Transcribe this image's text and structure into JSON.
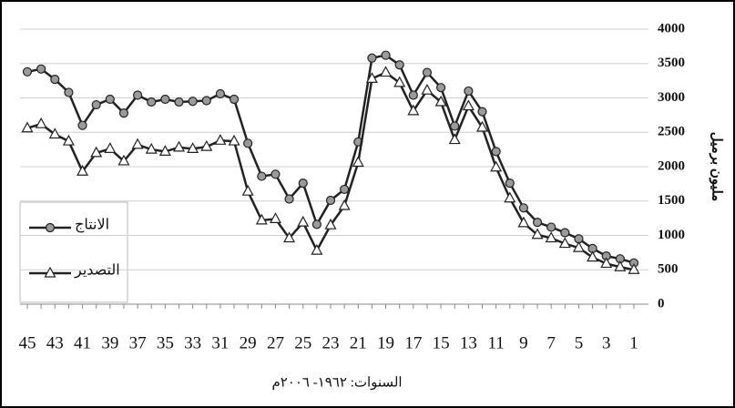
{
  "chart_data": {
    "type": "line",
    "y_label": "مليون برميل",
    "x_label": "السنوات: ١٩٦٢- ٢٠٠٦م",
    "categories": [
      "45",
      null,
      "43",
      null,
      "41",
      null,
      "39",
      null,
      "37",
      null,
      "35",
      null,
      "33",
      null,
      "31",
      null,
      "29",
      null,
      "27",
      null,
      "25",
      null,
      "23",
      null,
      "21",
      null,
      "19",
      null,
      "17",
      null,
      "15",
      null,
      "13",
      null,
      "11",
      null,
      "9",
      null,
      "7",
      null,
      "5",
      null,
      "3",
      null,
      "1"
    ],
    "series": [
      {
        "name": "الانتاج",
        "color": "#222222",
        "marker": "circle",
        "marker_fill": "#9a9a9a",
        "values": [
          3380,
          3420,
          3270,
          3080,
          2600,
          2900,
          2980,
          2780,
          3040,
          2940,
          2980,
          2940,
          2950,
          2960,
          3060,
          2980,
          2340,
          1860,
          1890,
          1530,
          1760,
          1160,
          1510,
          1670,
          2360,
          3580,
          3620,
          3480,
          3040,
          3370,
          3150,
          2590,
          3100,
          2800,
          2220,
          1760,
          1400,
          1190,
          1120,
          1040,
          950,
          810,
          700,
          660,
          600
        ]
      },
      {
        "name": "التصدير",
        "color": "#222222",
        "marker": "triangle",
        "marker_fill": "#ffffff",
        "values": [
          2560,
          2620,
          2470,
          2370,
          1930,
          2200,
          2260,
          2080,
          2320,
          2250,
          2220,
          2280,
          2260,
          2290,
          2380,
          2370,
          1640,
          1220,
          1240,
          960,
          1190,
          780,
          1150,
          1430,
          2060,
          3280,
          3370,
          3220,
          2810,
          3110,
          2940,
          2390,
          2880,
          2570,
          1990,
          1540,
          1180,
          1010,
          960,
          880,
          820,
          680,
          590,
          540,
          500
        ]
      }
    ],
    "ylim": [
      0,
      4000
    ],
    "yticks": [
      0,
      500,
      1000,
      1500,
      2000,
      2500,
      3000,
      3500,
      4000
    ],
    "grid": true
  }
}
